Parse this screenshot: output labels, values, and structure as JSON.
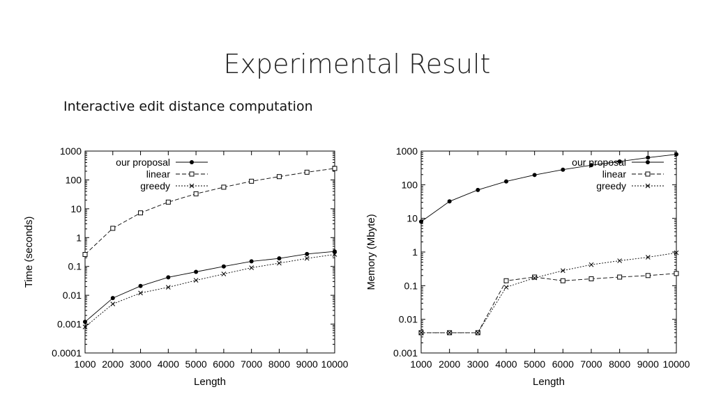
{
  "slide": {
    "title": "Experimental Result",
    "subtitle": "Interactive edit distance computation"
  },
  "chart_data": [
    {
      "type": "line",
      "title": "",
      "xlabel": "Length",
      "ylabel": "Time (seconds)",
      "yscale": "log",
      "xlim": [
        1000,
        10000
      ],
      "ylim": [
        0.0001,
        1000
      ],
      "x": [
        1000,
        2000,
        3000,
        4000,
        5000,
        6000,
        7000,
        8000,
        9000,
        10000
      ],
      "x_ticks": [
        "1000",
        "2000",
        "3000",
        "4000",
        "5000",
        "6000",
        "7000",
        "8000",
        "9000",
        "10000"
      ],
      "y_ticks": [
        {
          "value": 0.0001,
          "label": "0.0001"
        },
        {
          "value": 0.001,
          "label": "0.001"
        },
        {
          "value": 0.01,
          "label": "0.01"
        },
        {
          "value": 0.1,
          "label": "0.1"
        },
        {
          "value": 1,
          "label": "1"
        },
        {
          "value": 10,
          "label": "10"
        },
        {
          "value": 100,
          "label": "100"
        },
        {
          "value": 1000,
          "label": "1000"
        }
      ],
      "legend_position": "top",
      "series": [
        {
          "name": "our proposal",
          "marker": "dot",
          "dash": "solid",
          "values": [
            0.0012,
            0.008,
            0.021,
            0.042,
            0.065,
            0.1,
            0.15,
            0.19,
            0.27,
            0.33
          ]
        },
        {
          "name": "linear",
          "marker": "square",
          "dash": "dashed",
          "values": [
            0.26,
            2.1,
            7.2,
            17,
            33,
            56,
            90,
            130,
            185,
            250
          ]
        },
        {
          "name": "greedy",
          "marker": "cross",
          "dash": "dotted",
          "values": [
            0.0008,
            0.005,
            0.012,
            0.019,
            0.033,
            0.055,
            0.09,
            0.13,
            0.19,
            0.26
          ]
        }
      ]
    },
    {
      "type": "line",
      "title": "",
      "xlabel": "Length",
      "ylabel": "Memory (Mbyte)",
      "yscale": "log",
      "xlim": [
        1000,
        10000
      ],
      "ylim": [
        0.001,
        1000
      ],
      "x": [
        1000,
        2000,
        3000,
        4000,
        5000,
        6000,
        7000,
        8000,
        9000,
        10000
      ],
      "x_ticks": [
        "1000",
        "2000",
        "3000",
        "4000",
        "5000",
        "6000",
        "7000",
        "8000",
        "9000",
        "10000"
      ],
      "y_ticks": [
        {
          "value": 0.001,
          "label": "0.001"
        },
        {
          "value": 0.01,
          "label": "0.01"
        },
        {
          "value": 0.1,
          "label": "0.1"
        },
        {
          "value": 1,
          "label": "1"
        },
        {
          "value": 10,
          "label": "10"
        },
        {
          "value": 100,
          "label": "100"
        },
        {
          "value": 1000,
          "label": "1000"
        }
      ],
      "legend_position": "top-right",
      "series": [
        {
          "name": "our proposal",
          "marker": "dot",
          "dash": "solid",
          "values": [
            8,
            32,
            70,
            125,
            195,
            280,
            380,
            490,
            640,
            800
          ]
        },
        {
          "name": "linear",
          "marker": "square",
          "dash": "dashed",
          "values": [
            0.004,
            0.004,
            0.004,
            0.14,
            0.18,
            0.14,
            0.16,
            0.18,
            0.2,
            0.23
          ]
        },
        {
          "name": "greedy",
          "marker": "cross",
          "dash": "dotted",
          "values": [
            0.004,
            0.004,
            0.004,
            0.09,
            0.17,
            0.28,
            0.42,
            0.55,
            0.7,
            0.95
          ]
        }
      ]
    }
  ]
}
